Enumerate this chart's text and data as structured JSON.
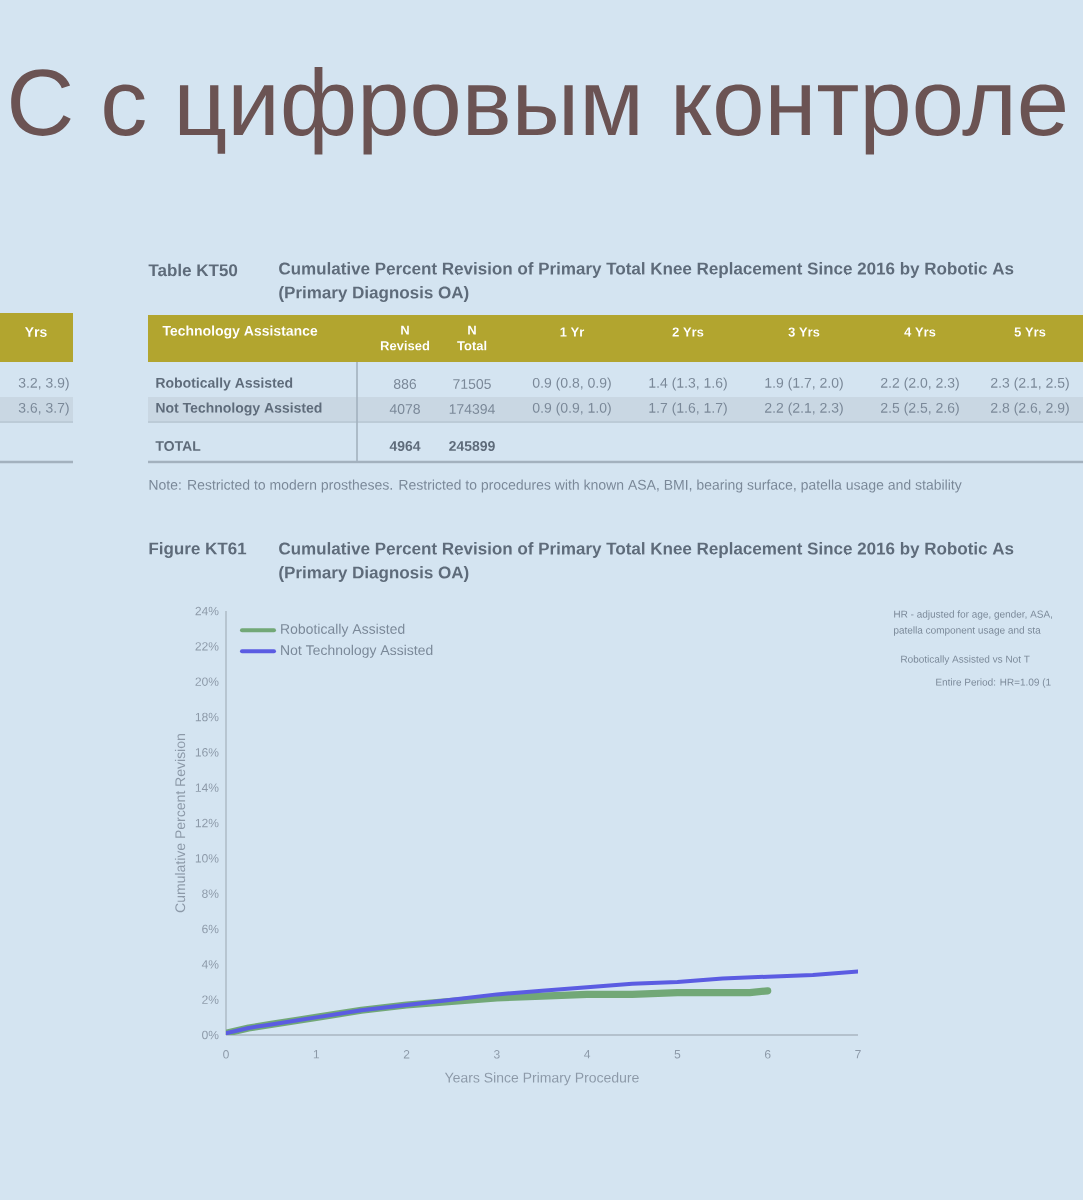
{
  "chart_data": {
    "type": "line",
    "title": "С с цифровым контроле",
    "xlabel": "Years Since Primary Procedure",
    "ylabel": "Cumulative Percent Revision",
    "xlim": [
      0,
      7
    ],
    "ylim": [
      0,
      24
    ],
    "xticks": [
      0,
      1,
      2,
      3,
      4,
      5,
      6,
      7
    ],
    "yticks": [
      {
        "value": 0,
        "label": "0%"
      },
      {
        "value": 2,
        "label": "2%"
      },
      {
        "value": 4,
        "label": "4%"
      },
      {
        "value": 6,
        "label": "6%"
      },
      {
        "value": 8,
        "label": "8%"
      },
      {
        "value": 10,
        "label": "10%"
      },
      {
        "value": 12,
        "label": "12%"
      },
      {
        "value": 14,
        "label": "14%"
      },
      {
        "value": 16,
        "label": "16%"
      },
      {
        "value": 18,
        "label": "18%"
      },
      {
        "value": 20,
        "label": "20%"
      },
      {
        "value": 22,
        "label": "22%"
      },
      {
        "value": 24,
        "label": "24%"
      }
    ],
    "legend": "top left",
    "series": [
      {
        "name": "Robotically Assisted",
        "color": "#72a877",
        "x": [
          0,
          0.25,
          0.5,
          1,
          1.5,
          2,
          2.5,
          3,
          3.5,
          4,
          4.5,
          5,
          5.5,
          5.8,
          6
        ],
        "values": [
          0.1,
          0.4,
          0.6,
          1.0,
          1.4,
          1.7,
          1.9,
          2.1,
          2.2,
          2.3,
          2.3,
          2.4,
          2.4,
          2.4,
          2.5
        ]
      },
      {
        "name": "Not Technology Assisted",
        "color": "#5b5ce2",
        "x": [
          0,
          0.25,
          0.5,
          1,
          1.5,
          2,
          2.5,
          3,
          3.5,
          4,
          4.5,
          5,
          5.5,
          6,
          6.5,
          7
        ],
        "values": [
          0.1,
          0.4,
          0.6,
          1.0,
          1.4,
          1.7,
          2.0,
          2.3,
          2.5,
          2.7,
          2.9,
          3.0,
          3.2,
          3.3,
          3.4,
          3.6
        ]
      }
    ],
    "annotations": [
      "Table KT50",
      "Cumulative Percent Revision of Primary Total Knee Replacement Since 2016 by Robotic As",
      "(Primary Diagnosis OA)",
      "Technology Assistance",
      "N Revised",
      "N Total",
      "1 Yr",
      "2 Yrs",
      "3 Yrs",
      "4 Yrs",
      "5 Yrs",
      "Robotically Assisted",
      "886",
      "71505",
      "0.9 (0.8, 0.9)",
      "1.4 (1.3, 1.6)",
      "1.9 (1.7, 2.0)",
      "2.2 (2.0, 2.3)",
      "2.3 (2.1, 2.5)",
      "Not Technology Assisted",
      "4078",
      "174394",
      "0.9 (0.9, 1.0)",
      "1.7 (1.6, 1.7)",
      "2.2 (2.1, 2.3)",
      "2.5 (2.5, 2.6)",
      "2.8 (2.6, 2.9)",
      "TOTAL",
      "4964",
      "245899",
      "Note: Restricted to modern prostheses. Restricted to procedures with known ASA, BMI, bearing surface, patella usage and stability",
      "Figure KT61",
      "Cumulative Percent Revision of Primary Total Knee Replacement Since 2016 by Robotic As",
      "(Primary Diagnosis OA)",
      "HR - adjusted for age, gender, ASA,",
      "patella component usage and sta",
      "Robotically Assisted vs Not T",
      "Entire Period: HR=1.09 (1",
      "Yrs",
      "3.2, 3.9)",
      "3.6, 3.7)"
    ]
  }
}
